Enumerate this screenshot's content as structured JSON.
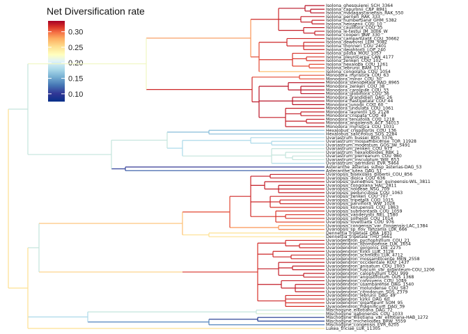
{
  "legend": {
    "title": "Net Diversification rate",
    "ticks": [
      "0.30",
      "0.25",
      "0.20",
      "0.15",
      "0.10"
    ],
    "tick_values": [
      0.3,
      0.25,
      0.2,
      0.15,
      0.1
    ],
    "range": [
      0.075,
      0.335
    ],
    "colormap": [
      "#a50026",
      "#d73027",
      "#f46d43",
      "#fdae61",
      "#fee090",
      "#ffffbf",
      "#e0f3f8",
      "#abd9e9",
      "#74add1",
      "#4575b4",
      "#313695",
      "#08308a"
    ]
  },
  "tips": [
    "Isolona_ghesquierei_SCH_3364",
    "Isolona_capuronii_CAP_8941",
    "Isolona_madagascariensis_RAK_550",
    "Isolona_perrieri_RAK_333",
    "Isolona_humbertiana_GHM_5382",
    "Isolona_heinsenii_COU_10",
    "Isolona_cauliflora_COU_35",
    "Isolona_le-testui_JM_3006_W",
    "Isolona_cooperi_JAW_330",
    "Isolona_campanulata_COU_30662",
    "Isolona_dewevrei_LEM_3082",
    "Isolona_thonneri_COU_2401",
    "Isolona_deightonii_LOP_240",
    "Isolona_pilosa_MOU_1057",
    "Isolona_pleurocarpa_CAN_4177",
    "Isolona_zenkeri_COU_102",
    "Isolona_hexaloba_COU_1261",
    "Isolona_lebrunii_BAM_131",
    "Isolona_congolana_COU_1054",
    "Monodora_myristica_COU_63",
    "Monodora_minor_COU_30",
    "Monodora_stenopetala_RAD_8965",
    "Monodora_zenkeri_COU_38",
    "Monodora_carolinae_COU_33",
    "Monodora_globiflora_COU_36",
    "Monodora_grandidieri_DAG_26",
    "Monodora_hastipetala_COU_44",
    "Monodora_junodii_COU_60",
    "Monodora_undulata_COU_1061",
    "Monodora_laurentii_LIS_2128",
    "Monodora_crispata_COU_49",
    "Monodora_tenuifolia_COU_1218",
    "Monodora_angolensis_ACF_34013",
    "Monodora_myristica_COU_1031",
    "Hexalobus_crispiflorus_COU_136",
    "Hexalobus_salicifolius_SOS_2284",
    "Uvariastrum_bussei_BOS_5376",
    "Uvariastrum_mossambicense_TOR_11928",
    "Uvariastrum_modestum_GOS_JW_5491",
    "Uvariastrum_zenkeri_COU_977",
    "Uvariastrum_hexaloboides_RBK_1",
    "Uvariastrum_pierreanum_COU_980",
    "Uvariastrum_insculptum_WIE_653",
    "Uvariastrum_germainii_EVR_5464",
    "Asteranthe_asterias_subsp_asterias-DAG_53",
    "Asteranthe_lutea_DAG_51",
    "Uvariopsis_bisexualis_gilbertii_COU_856",
    "Uvariopsis_dioica_COU_636",
    "Uvariopsis_guineensis_var_guineensis-WIL_3811",
    "Uvariopsis_congolana_HAL_2811",
    "Uvariopsis_noldeae_NSG_709",
    "Uvariopsis_pedunculosa_COU_1063",
    "Uvariopsis_zenkeri_COU_707",
    "Uvariopsis_tripetala_COU_1015",
    "Uvariopsis_parviflora_WW_1028",
    "Uvariopsis_korupensis_COU_1863",
    "Uvariopsis_submontana_COU_1059",
    "Uvariopsis_vanderystii_NEL_1580",
    "Uvariopsis_solheidii_COU_1014",
    "Uvariopsis_lovettiana_COU_976",
    "Uvariopsis_congensis_var_congensis-LAC_1384",
    "Uvariopsis_sp_nov_Tanzania_LUK_666",
    "Dennettia_tripetala_OBA_1831",
    "Dennettia_tripetala_THO_5661",
    "Uvariodendron_pycnophyllum_COU_21",
    "Uvariodendron_dzomboense_LUK_1654",
    "Uvariodendron_gorgonis_DIE_2275",
    "Uvariodendron_kirkii_LUK_3128",
    "Uvariodendron_schmidtii_LUK_4712",
    "Uvariodendron_mossambicense_MEN_2558",
    "Uvariodendron_occidentale_KOU_1437",
    "Uvariodendron_anisatum_COU_1003",
    "Uvariodendron_fuscum_var_giganteum-COU_1206",
    "Uvariodendron_calophyllum_COU_999",
    "Uvariodendron_angustifolium_OUS_1368",
    "Uvariodendron_connivens_COU_1049",
    "Uvariodendron_usambarense_DAG_1540",
    "Uvariodendron_molundense_COU_587",
    "Uvariodendron_citrodorum_SOS_2379",
    "Uvariodendron_lebrunii_DAG_49",
    "Uvariodendron_kirkii_DAG_60",
    "Uvariodendron_giganteum_SOM_95",
    "Uvariodendron_magnificum_DAG_39",
    "Mischogyne_elliotiana_DAG_72",
    "Mischogyne_gabonensis_COU_1033",
    "Mischogyne_elliotiana_var_elliotiana-HAB_1272",
    "Mischogyne_michelioides_BRW_3559",
    "Mischogyne_congensis_EVR_6205",
    "Lukea_triciae_LUK_11305"
  ]
}
